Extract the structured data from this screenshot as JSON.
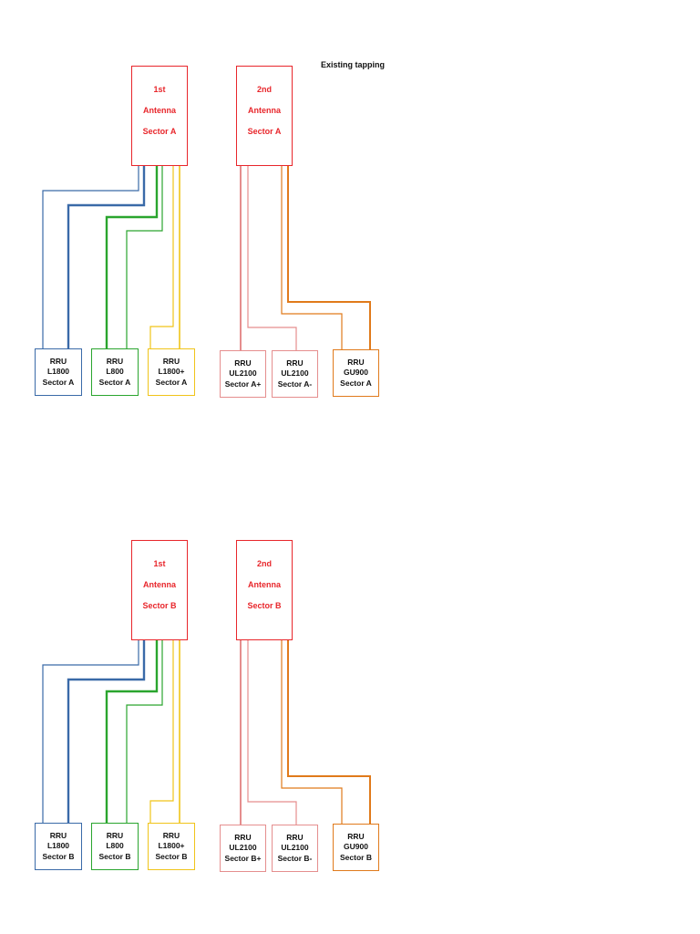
{
  "title": "Existing tapping",
  "colors": {
    "antenna": "#e8262b",
    "l1800": "#3a6aa8",
    "l800": "#2aa52e",
    "l1800plus": "#f0c419",
    "ul2100": "#e58e8e",
    "gu900": "#e07a1b"
  },
  "groups": [
    {
      "antennas": [
        {
          "lines": [
            "1st",
            "Antenna",
            "Sector A"
          ]
        },
        {
          "lines": [
            "2nd",
            "Antenna",
            "Sector A"
          ]
        }
      ],
      "rrus": [
        {
          "lines": [
            "RRU",
            "L1800",
            "Sector A"
          ]
        },
        {
          "lines": [
            "RRU",
            "L800",
            "Sector A"
          ]
        },
        {
          "lines": [
            "RRU",
            "L1800+",
            "Sector A"
          ]
        },
        {
          "lines": [
            "RRU",
            "UL2100",
            "Sector A+"
          ]
        },
        {
          "lines": [
            "RRU",
            "UL2100",
            "Sector A-"
          ]
        },
        {
          "lines": [
            "RRU",
            "GU900",
            "Sector A"
          ]
        }
      ]
    },
    {
      "antennas": [
        {
          "lines": [
            "1st",
            "Antenna",
            "Sector B"
          ]
        },
        {
          "lines": [
            "2nd",
            "Antenna",
            "Sector B"
          ]
        }
      ],
      "rrus": [
        {
          "lines": [
            "RRU",
            "L1800",
            "Sector B"
          ]
        },
        {
          "lines": [
            "RRU",
            "L800",
            "Sector B"
          ]
        },
        {
          "lines": [
            "RRU",
            "L1800+",
            "Sector B"
          ]
        },
        {
          "lines": [
            "RRU",
            "UL2100",
            "Sector B+"
          ]
        },
        {
          "lines": [
            "RRU",
            "UL2100",
            "Sector B-"
          ]
        },
        {
          "lines": [
            "RRU",
            "GU900",
            "Sector B"
          ]
        }
      ]
    }
  ]
}
